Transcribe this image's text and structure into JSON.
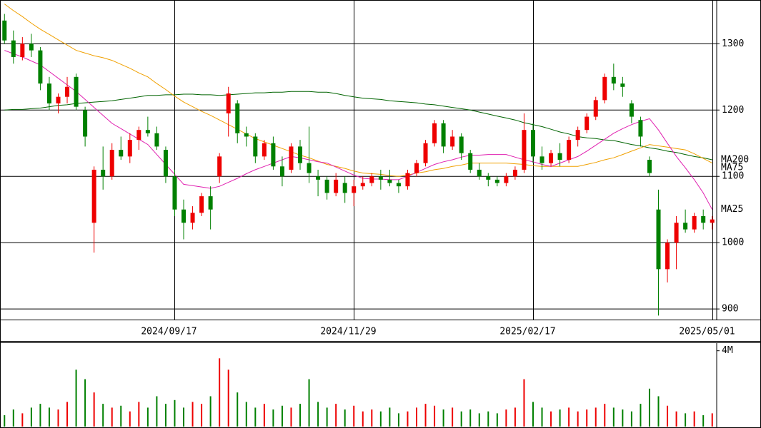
{
  "chart_data": {
    "type": "candlestick",
    "categories": [
      null,
      null,
      null,
      null,
      null,
      null,
      null,
      null,
      null,
      null,
      null,
      null,
      null,
      null,
      null,
      null,
      null,
      null,
      null,
      "2024/09/17",
      null,
      null,
      null,
      null,
      null,
      null,
      null,
      null,
      null,
      null,
      null,
      null,
      null,
      null,
      null,
      null,
      null,
      null,
      null,
      "2024/11/29",
      null,
      null,
      null,
      null,
      null,
      null,
      null,
      null,
      null,
      null,
      null,
      null,
      null,
      null,
      null,
      null,
      null,
      null,
      null,
      "2025/02/17",
      null,
      null,
      null,
      null,
      null,
      null,
      null,
      null,
      null,
      null,
      null,
      null,
      null,
      null,
      null,
      null,
      null,
      null,
      null,
      "2025/05/01"
    ],
    "open": [
      1335,
      1305,
      1280,
      1300,
      1290,
      1240,
      1210,
      1220,
      1250,
      1200,
      1030,
      1110,
      1100,
      1140,
      1130,
      1155,
      1170,
      1165,
      1140,
      1100,
      1050,
      1030,
      1045,
      1070,
      1100,
      1195,
      1210,
      1165,
      1160,
      1130,
      1150,
      1115,
      1110,
      1145,
      1120,
      1100,
      1095,
      1075,
      1090,
      1075,
      1085,
      1090,
      1100,
      1095,
      1090,
      1085,
      1105,
      1120,
      1150,
      1180,
      1145,
      1160,
      1135,
      1110,
      1100,
      1095,
      1090,
      1100,
      1110,
      1170,
      1130,
      1120,
      1135,
      1125,
      1155,
      1170,
      1190,
      1215,
      1250,
      1240,
      1210,
      1185,
      1125,
      1050,
      960,
      1000,
      1030,
      1020,
      1040,
      1030
    ],
    "high": [
      1345,
      1320,
      1310,
      1315,
      1295,
      1250,
      1225,
      1250,
      1255,
      1205,
      1115,
      1145,
      1150,
      1160,
      1165,
      1175,
      1190,
      1175,
      1145,
      1110,
      1065,
      1055,
      1075,
      1085,
      1135,
      1235,
      1215,
      1175,
      1165,
      1155,
      1160,
      1130,
      1150,
      1155,
      1175,
      1110,
      1100,
      1105,
      1100,
      1095,
      1100,
      1105,
      1110,
      1110,
      1095,
      1110,
      1125,
      1155,
      1185,
      1185,
      1170,
      1165,
      1140,
      1120,
      1105,
      1100,
      1105,
      1115,
      1195,
      1180,
      1145,
      1140,
      1150,
      1160,
      1175,
      1195,
      1220,
      1255,
      1270,
      1250,
      1215,
      1190,
      1130,
      1080,
      1005,
      1040,
      1050,
      1045,
      1050,
      1040
    ],
    "low": [
      1300,
      1270,
      1275,
      1280,
      1230,
      1200,
      1195,
      1210,
      1200,
      1145,
      985,
      1080,
      1095,
      1125,
      1120,
      1140,
      1160,
      1140,
      1090,
      1040,
      1005,
      1020,
      1040,
      1020,
      1090,
      1160,
      1150,
      1145,
      1120,
      1125,
      1110,
      1085,
      1105,
      1110,
      1090,
      1070,
      1065,
      1070,
      1060,
      1055,
      1080,
      1085,
      1080,
      1085,
      1075,
      1080,
      1100,
      1115,
      1145,
      1135,
      1140,
      1125,
      1105,
      1095,
      1085,
      1085,
      1085,
      1095,
      1105,
      1120,
      1110,
      1115,
      1115,
      1120,
      1145,
      1165,
      1185,
      1210,
      1230,
      1220,
      1180,
      1145,
      1100,
      890,
      940,
      960,
      1015,
      1015,
      1020,
      1020
    ],
    "close": [
      1305,
      1280,
      1300,
      1290,
      1240,
      1210,
      1220,
      1235,
      1205,
      1160,
      1110,
      1100,
      1140,
      1130,
      1155,
      1170,
      1165,
      1145,
      1100,
      1050,
      1030,
      1045,
      1070,
      1050,
      1130,
      1225,
      1165,
      1160,
      1130,
      1150,
      1115,
      1100,
      1145,
      1120,
      1105,
      1095,
      1075,
      1095,
      1075,
      1085,
      1090,
      1100,
      1095,
      1090,
      1085,
      1105,
      1120,
      1150,
      1180,
      1145,
      1160,
      1135,
      1110,
      1100,
      1095,
      1090,
      1100,
      1110,
      1170,
      1130,
      1120,
      1135,
      1125,
      1155,
      1170,
      1190,
      1215,
      1250,
      1240,
      1235,
      1190,
      1160,
      1105,
      960,
      1000,
      1030,
      1020,
      1040,
      1030,
      1035
    ],
    "up_color": "#ee0000",
    "down_color": "#008000",
    "ylim": [
      884,
      1366
    ],
    "yticks": [
      900,
      1000,
      1100,
      1200,
      1300
    ],
    "grid": true,
    "series": [
      {
        "name": "MA200",
        "color": "#006400",
        "values": [
          1200,
          1201,
          1201,
          1202,
          1203,
          1205,
          1207,
          1208,
          1210,
          1211,
          1212,
          1213,
          1214,
          1216,
          1218,
          1220,
          1222,
          1222,
          1223,
          1223,
          1224,
          1224,
          1223,
          1223,
          1222,
          1223,
          1224,
          1225,
          1226,
          1226,
          1227,
          1227,
          1228,
          1228,
          1228,
          1227,
          1227,
          1225,
          1222,
          1220,
          1218,
          1217,
          1216,
          1214,
          1213,
          1212,
          1211,
          1209,
          1208,
          1206,
          1204,
          1202,
          1200,
          1197,
          1194,
          1191,
          1188,
          1185,
          1181,
          1178,
          1175,
          1171,
          1167,
          1164,
          1160,
          1158,
          1157,
          1155,
          1154,
          1151,
          1148,
          1146,
          1143,
          1141,
          1138,
          1136,
          1133,
          1130,
          1128,
          1125
        ]
      },
      {
        "name": "MA75",
        "color": "#f0a000",
        "values": [
          1360,
          1350,
          1341,
          1331,
          1322,
          1314,
          1306,
          1298,
          1290,
          1286,
          1282,
          1279,
          1275,
          1269,
          1263,
          1256,
          1250,
          1240,
          1231,
          1221,
          1212,
          1205,
          1198,
          1192,
          1185,
          1178,
          1171,
          1164,
          1157,
          1152,
          1147,
          1142,
          1137,
          1132,
          1128,
          1123,
          1118,
          1115,
          1112,
          1108,
          1105,
          1104,
          1103,
          1101,
          1100,
          1102,
          1105,
          1107,
          1110,
          1112,
          1115,
          1117,
          1120,
          1120,
          1120,
          1120,
          1120,
          1119,
          1118,
          1116,
          1115,
          1115,
          1115,
          1115,
          1115,
          1118,
          1121,
          1125,
          1128,
          1133,
          1138,
          1143,
          1148,
          1146,
          1144,
          1142,
          1140,
          1134,
          1127,
          1120
        ]
      },
      {
        "name": "MA25",
        "color": "#e020b0",
        "values": [
          1290,
          1285,
          1280,
          1274,
          1268,
          1258,
          1248,
          1238,
          1228,
          1216,
          1204,
          1192,
          1180,
          1172,
          1164,
          1156,
          1148,
          1133,
          1118,
          1103,
          1088,
          1086,
          1084,
          1082,
          1085,
          1091,
          1097,
          1104,
          1110,
          1115,
          1120,
          1125,
          1130,
          1128,
          1125,
          1122,
          1120,
          1114,
          1108,
          1102,
          1097,
          1096,
          1096,
          1095,
          1095,
          1100,
          1106,
          1112,
          1118,
          1122,
          1125,
          1129,
          1132,
          1132,
          1133,
          1133,
          1133,
          1129,
          1125,
          1122,
          1118,
          1115,
          1120,
          1125,
          1130,
          1138,
          1147,
          1156,
          1165,
          1172,
          1178,
          1183,
          1187,
          1170,
          1150,
          1130,
          1113,
          1095,
          1075,
          1050
        ]
      }
    ],
    "volume": {
      "values": [
        0.6,
        0.9,
        0.7,
        1.0,
        1.2,
        1.0,
        0.9,
        1.3,
        3.0,
        2.5,
        1.8,
        1.2,
        1.0,
        1.1,
        0.8,
        1.3,
        1.0,
        1.6,
        1.2,
        1.4,
        1.0,
        1.3,
        1.2,
        1.6,
        3.6,
        3.0,
        1.8,
        1.3,
        1.0,
        1.2,
        0.9,
        1.1,
        1.0,
        1.2,
        2.5,
        1.3,
        1.0,
        1.2,
        0.9,
        1.1,
        0.8,
        0.9,
        0.8,
        1.0,
        0.7,
        0.8,
        1.0,
        1.2,
        1.1,
        0.9,
        1.0,
        0.8,
        0.9,
        0.7,
        0.8,
        0.7,
        0.9,
        1.0,
        2.5,
        1.3,
        1.0,
        0.8,
        0.9,
        1.0,
        0.8,
        0.9,
        1.0,
        1.2,
        1.0,
        0.9,
        0.8,
        1.2,
        2.0,
        1.6,
        1.1,
        0.8,
        0.7,
        0.8,
        0.6,
        0.7
      ],
      "ylim": [
        0,
        4.44
      ],
      "yticks": [
        {
          "value": 4,
          "label": "4M"
        }
      ]
    }
  }
}
